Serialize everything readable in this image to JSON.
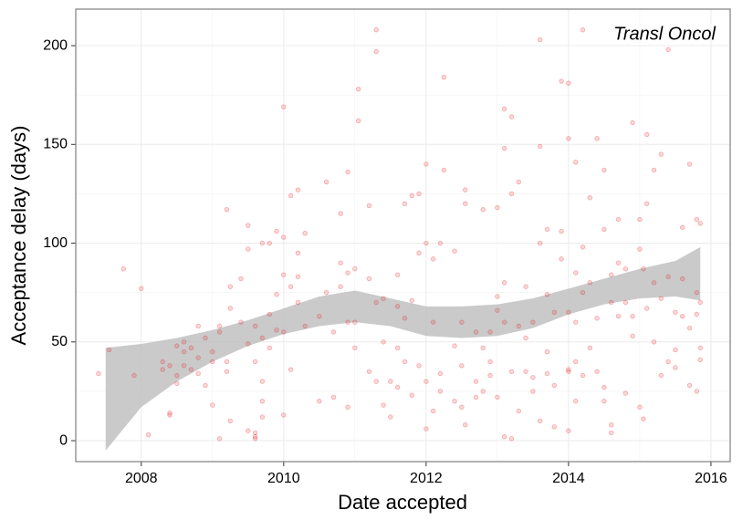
{
  "chart_data": {
    "type": "scatter",
    "annotation": "Transl Oncol",
    "xlabel": "Date accepted",
    "ylabel": "Acceptance delay (days)",
    "xlim": [
      2007.08,
      2016.27
    ],
    "ylim": [
      -10.6,
      218.5
    ],
    "xticks": [
      2008,
      2010,
      2012,
      2014,
      2016
    ],
    "yticks": [
      0,
      50,
      100,
      150,
      200
    ],
    "x_minor_ticks": [
      2009,
      2011,
      2013,
      2015
    ],
    "y_minor_ticks": [
      25,
      75,
      125,
      175
    ],
    "grid": true,
    "points": {
      "color": "#e8262a",
      "x": [
        2007.4,
        2007.55,
        2007.75,
        2007.9,
        2008.0,
        2008.1,
        2008.3,
        2008.3,
        2008.4,
        2008.4,
        2008.4,
        2008.5,
        2008.5,
        2008.5,
        2008.6,
        2008.6,
        2008.6,
        2008.7,
        2008.7,
        2008.8,
        2008.8,
        2008.8,
        2008.9,
        2008.9,
        2009.0,
        2009.0,
        2009.0,
        2009.1,
        2009.1,
        2009.1,
        2009.2,
        2009.2,
        2009.2,
        2009.25,
        2009.25,
        2009.25,
        2009.4,
        2009.4,
        2009.5,
        2009.5,
        2009.5,
        2009.5,
        2009.6,
        2009.6,
        2009.6,
        2009.6,
        2009.6,
        2009.7,
        2009.7,
        2009.7,
        2009.7,
        2009.7,
        2009.8,
        2009.8,
        2009.8,
        2009.9,
        2009.9,
        2009.9,
        2010.0,
        2010.0,
        2010.0,
        2010.0,
        2010.0,
        2010.1,
        2010.1,
        2010.1,
        2010.2,
        2010.2,
        2010.2,
        2010.2,
        2010.3,
        2010.3,
        2010.5,
        2010.5,
        2010.6,
        2010.6,
        2010.7,
        2010.7,
        2010.8,
        2010.8,
        2010.8,
        2010.9,
        2010.9,
        2010.9,
        2010.9,
        2011.0,
        2011.0,
        2011.0,
        2011.05,
        2011.05,
        2011.2,
        2011.2,
        2011.2,
        2011.3,
        2011.3,
        2011.3,
        2011.3,
        2011.4,
        2011.4,
        2011.4,
        2011.5,
        2011.5,
        2011.6,
        2011.6,
        2011.6,
        2011.6,
        2011.7,
        2011.7,
        2011.7,
        2011.8,
        2011.8,
        2011.8,
        2011.9,
        2011.9,
        2011.9,
        2012.0,
        2012.0,
        2012.0,
        2012.0,
        2012.1,
        2012.1,
        2012.1,
        2012.2,
        2012.2,
        2012.2,
        2012.25,
        2012.25,
        2012.4,
        2012.4,
        2012.4,
        2012.5,
        2012.5,
        2012.5,
        2012.55,
        2012.55,
        2012.55,
        2012.7,
        2012.7,
        2012.7,
        2012.8,
        2012.8,
        2012.8,
        2012.9,
        2012.9,
        2012.9,
        2013.0,
        2013.0,
        2013.0,
        2013.0,
        2013.1,
        2013.1,
        2013.1,
        2013.1,
        2013.1,
        2013.2,
        2013.2,
        2013.2,
        2013.2,
        2013.3,
        2013.3,
        2013.3,
        2013.4,
        2013.4,
        2013.4,
        2013.5,
        2013.5,
        2013.5,
        2013.6,
        2013.6,
        2013.6,
        2013.6,
        2013.7,
        2013.7,
        2013.7,
        2013.7,
        2013.8,
        2013.8,
        2013.8,
        2013.9,
        2013.9,
        2013.9,
        2014.0,
        2014.0,
        2014.0,
        2014.0,
        2014.0,
        2014.0,
        2014.1,
        2014.1,
        2014.1,
        2014.1,
        2014.1,
        2014.2,
        2014.2,
        2014.2,
        2014.2,
        2014.3,
        2014.3,
        2014.3,
        2014.4,
        2014.4,
        2014.4,
        2014.5,
        2014.5,
        2014.5,
        2014.5,
        2014.6,
        2014.6,
        2014.6,
        2014.6,
        2014.7,
        2014.7,
        2014.7,
        2014.8,
        2014.8,
        2014.8,
        2014.9,
        2014.9,
        2014.9,
        2015.0,
        2015.0,
        2015.0,
        2015.05,
        2015.05,
        2015.1,
        2015.1,
        2015.1,
        2015.2,
        2015.2,
        2015.2,
        2015.3,
        2015.3,
        2015.3,
        2015.4,
        2015.4,
        2015.4,
        2015.5,
        2015.5,
        2015.5,
        2015.6,
        2015.6,
        2015.6,
        2015.7,
        2015.7,
        2015.7,
        2015.8,
        2015.8,
        2015.8,
        2015.8,
        2015.85,
        2015.85,
        2015.85,
        2015.85
      ],
      "y": [
        34,
        46,
        87,
        33,
        77,
        3,
        36,
        40,
        38,
        14,
        13,
        48,
        33,
        29,
        50,
        38,
        45,
        36,
        47,
        58,
        42,
        34,
        52,
        28,
        40,
        18,
        45,
        55,
        1,
        58,
        117,
        40,
        35,
        78,
        67,
        10,
        82,
        60,
        109,
        97,
        49,
        5,
        4,
        2,
        1,
        40,
        58,
        100,
        52,
        30,
        20,
        12,
        100,
        64,
        47,
        106,
        74,
        56,
        103,
        84,
        169,
        55,
        13,
        124,
        78,
        36,
        127,
        95,
        83,
        70,
        105,
        58,
        63,
        20,
        131,
        75,
        55,
        22,
        115,
        78,
        90,
        136,
        85,
        60,
        17,
        60,
        47,
        87,
        178,
        162,
        119,
        82,
        35,
        197,
        208,
        70,
        30,
        72,
        50,
        18,
        30,
        12,
        84,
        68,
        27,
        47,
        120,
        62,
        40,
        124,
        71,
        23,
        125,
        95,
        38,
        140,
        100,
        30,
        6,
        92,
        60,
        15,
        100,
        34,
        25,
        137,
        184,
        96,
        48,
        20,
        17,
        38,
        60,
        127,
        120,
        8,
        55,
        30,
        22,
        117,
        47,
        25,
        55,
        40,
        33,
        118,
        73,
        66,
        22,
        168,
        148,
        80,
        2,
        60,
        164,
        125,
        35,
        1,
        131,
        58,
        15,
        52,
        78,
        35,
        60,
        32,
        25,
        203,
        149,
        100,
        10,
        107,
        74,
        45,
        34,
        65,
        28,
        7,
        182,
        106,
        92,
        181,
        153,
        36,
        35,
        5,
        65,
        141,
        85,
        60,
        40,
        20,
        208,
        98,
        75,
        33,
        123,
        80,
        47,
        153,
        62,
        35,
        137,
        107,
        27,
        20,
        84,
        70,
        4,
        8,
        112,
        90,
        63,
        87,
        70,
        24,
        161,
        63,
        53,
        112,
        97,
        17,
        11,
        87,
        120,
        155,
        67,
        137,
        80,
        50,
        145,
        72,
        33,
        198,
        83,
        40,
        65,
        46,
        37,
        108,
        82,
        63,
        140,
        57,
        28,
        112,
        75,
        64,
        25,
        110,
        70,
        41,
        47
      ]
    },
    "band": {
      "color": "#bdbdbd",
      "x": [
        2007.5,
        2008,
        2008.5,
        2009,
        2009.5,
        2010,
        2010.5,
        2011,
        2011.5,
        2012,
        2012.5,
        2013,
        2013.5,
        2014,
        2014.5,
        2015,
        2015.5,
        2015.85
      ],
      "upper": [
        47,
        49,
        52,
        56,
        61,
        67,
        73,
        76,
        72,
        68,
        68,
        69,
        72,
        77,
        82,
        87,
        91,
        98
      ],
      "lower": [
        -5,
        17,
        30,
        40,
        48,
        54,
        58,
        60,
        58,
        53,
        52,
        53,
        57,
        64,
        69,
        72,
        73,
        71
      ]
    }
  }
}
